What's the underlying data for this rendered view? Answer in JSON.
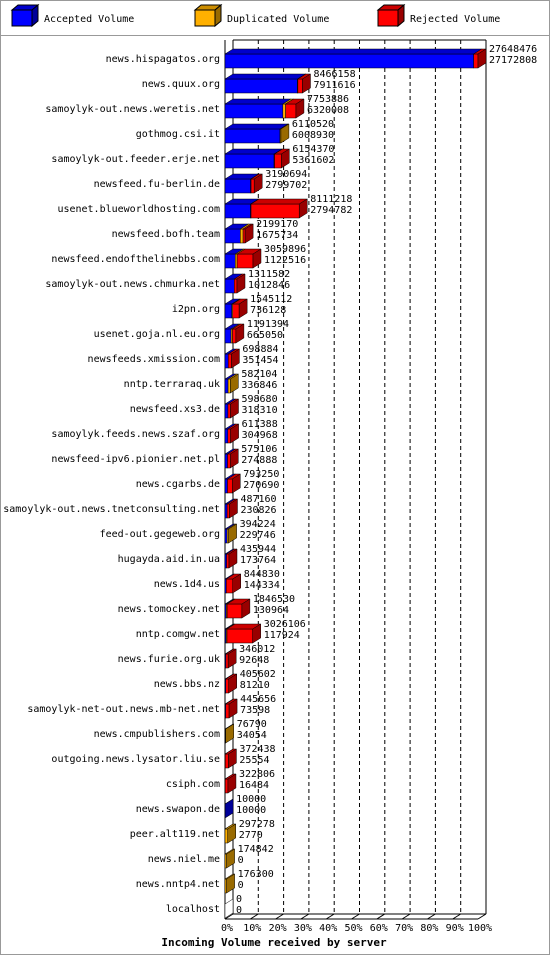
{
  "chart_data": {
    "type": "bar",
    "orientation": "horizontal",
    "stacked": true,
    "xlabel": "Incoming Volume received by server",
    "categories": [
      "news.hispagatos.org",
      "news.quux.org",
      "samoylyk-out.news.weretis.net",
      "gothmog.csi.it",
      "samoylyk-out.feeder.erje.net",
      "newsfeed.fu-berlin.de",
      "usenet.blueworldhosting.com",
      "newsfeed.bofh.team",
      "newsfeed.endofthelinebbs.com",
      "samoylyk-out.news.chmurka.net",
      "i2pn.org",
      "usenet.goja.nl.eu.org",
      "newsfeeds.xmission.com",
      "nntp.terraraq.uk",
      "newsfeed.xs3.de",
      "samoylyk.feeds.news.szaf.org",
      "newsfeed-ipv6.pionier.net.pl",
      "news.cgarbs.de",
      "samoylyk-out.news.tnetconsulting.net",
      "feed-out.gegeweb.org",
      "hugayda.aid.in.ua",
      "news.1d4.us",
      "news.tomockey.net",
      "nntp.comgw.net",
      "news.furie.org.uk",
      "news.bbs.nz",
      "samoylyk-net-out.news.mb-net.net",
      "news.cmpublishers.com",
      "outgoing.news.lysator.liu.se",
      "csiph.com",
      "news.swapon.de",
      "peer.alt119.net",
      "news.niel.me",
      "news.nntp4.net",
      "localhost"
    ],
    "totals": [
      27648476,
      8466158,
      7753886,
      6110520,
      6154370,
      3190694,
      8111218,
      2199170,
      3059896,
      1311582,
      1545112,
      1191394,
      698884,
      582104,
      598680,
      611388,
      575106,
      793250,
      487160,
      394224,
      435944,
      844830,
      1846530,
      3026106,
      346012,
      405602,
      445656,
      76790,
      372438,
      322806,
      10000,
      297278,
      174842,
      176300,
      0
    ],
    "series": [
      {
        "name": "Accepted Volume",
        "color": "#0000ff",
        "values": [
          27172808,
          7911616,
          6320008,
          6008930,
          5361602,
          2799702,
          2794782,
          1675734,
          1122516,
          1012846,
          736128,
          665050,
          351454,
          336846,
          318310,
          304968,
          274888,
          270690,
          230826,
          229746,
          173764,
          144334,
          130964,
          117924,
          92648,
          81210,
          73598,
          34054,
          25554,
          16484,
          10000,
          2770,
          0,
          0,
          0
        ]
      },
      {
        "name": "Duplicated Volume",
        "color": "#ffb000",
        "values": [
          0,
          50000,
          300000,
          101590,
          50000,
          50000,
          50000,
          300000,
          200000,
          0,
          100000,
          150000,
          0,
          245258,
          0,
          0,
          0,
          0,
          0,
          164478,
          0,
          0,
          100000,
          100000,
          0,
          0,
          0,
          42736,
          0,
          0,
          0,
          294508,
          174842,
          176300,
          0
        ]
      },
      {
        "name": "Rejected Volume",
        "color": "#ff0000",
        "values": [
          475668,
          504542,
          1133878,
          0,
          742768,
          340992,
          5266436,
          223436,
          1737380,
          298736,
          708984,
          376344,
          347430,
          0,
          280370,
          306420,
          300218,
          522560,
          256334,
          0,
          262180,
          700496,
          1615566,
          2808182,
          253364,
          324392,
          372058,
          0,
          346884,
          306322,
          0,
          0,
          0,
          0,
          0
        ]
      }
    ],
    "xlim": [
      0,
      27648476
    ],
    "xticks": [
      {
        "value": 0,
        "label": "0%"
      },
      {
        "value": 2764847.6,
        "label": "10%"
      },
      {
        "value": 5529695.2,
        "label": "20%"
      },
      {
        "value": 8294542.8,
        "label": "30%"
      },
      {
        "value": 11059390.4,
        "label": "40%"
      },
      {
        "value": 13824238,
        "label": "50%"
      },
      {
        "value": 16589085.6,
        "label": "60%"
      },
      {
        "value": 19353933.2,
        "label": "70%"
      },
      {
        "value": 22118780.8,
        "label": "80%"
      },
      {
        "value": 24883628.4,
        "label": "90%"
      },
      {
        "value": 27648476,
        "label": "100%"
      }
    ],
    "grid": true
  }
}
